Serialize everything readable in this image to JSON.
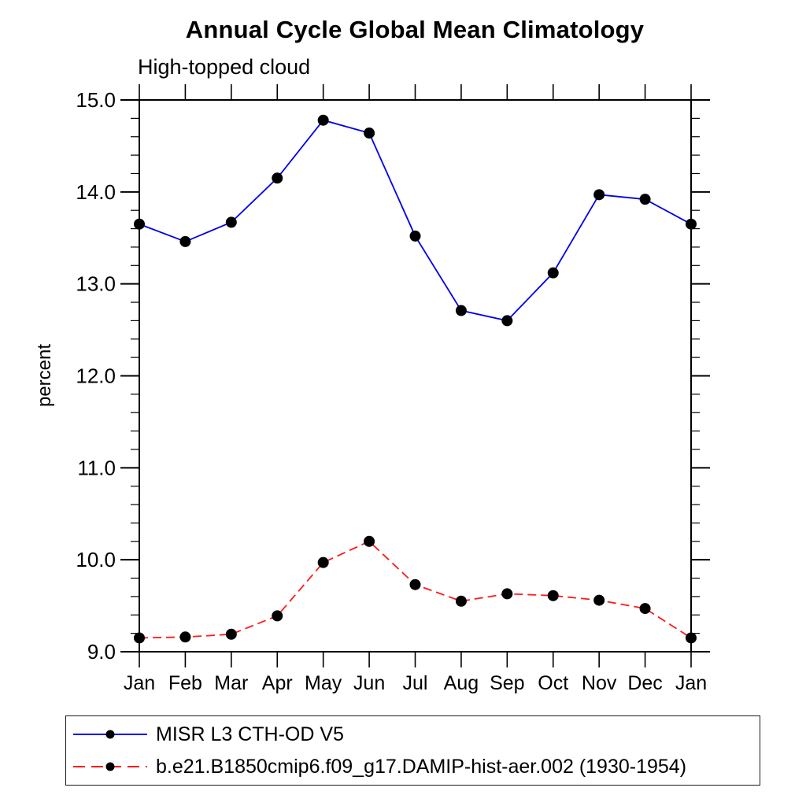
{
  "chart_data": {
    "type": "line",
    "title": "Annual Cycle Global Mean Climatology",
    "subtitle": "High-topped cloud",
    "ylabel": "percent",
    "xlabel": "",
    "categories": [
      "Jan",
      "Feb",
      "Mar",
      "Apr",
      "May",
      "Jun",
      "Jul",
      "Aug",
      "Sep",
      "Oct",
      "Nov",
      "Dec",
      "Jan"
    ],
    "series": [
      {
        "name": "MISR L3 CTH-OD V5",
        "color": "#0000ee",
        "line_style": "solid",
        "marker": "filled-circle",
        "values": [
          13.65,
          13.46,
          13.67,
          14.15,
          14.78,
          14.64,
          13.52,
          12.71,
          12.6,
          13.12,
          13.97,
          13.92,
          13.65
        ]
      },
      {
        "name": "b.e21.B1850cmip6.f09_g17.DAMIP-hist-aer.002 (1930-1954)",
        "color": "#ff1a1a",
        "line_style": "dashed",
        "marker": "filled-circle",
        "values": [
          9.15,
          9.16,
          9.19,
          9.39,
          9.97,
          10.2,
          9.73,
          9.55,
          9.63,
          9.61,
          9.56,
          9.47,
          9.15
        ]
      }
    ],
    "ylim": [
      9.0,
      15.0
    ],
    "yticks": {
      "major_step": 1.0,
      "minor_step": 0.2,
      "labels": [
        "15.0",
        "14.0",
        "13.0",
        "12.0",
        "11.0",
        "10.0",
        "9.0"
      ]
    },
    "grid": false,
    "legend_position": "bottom-left-box",
    "marker_color": "#000000"
  }
}
